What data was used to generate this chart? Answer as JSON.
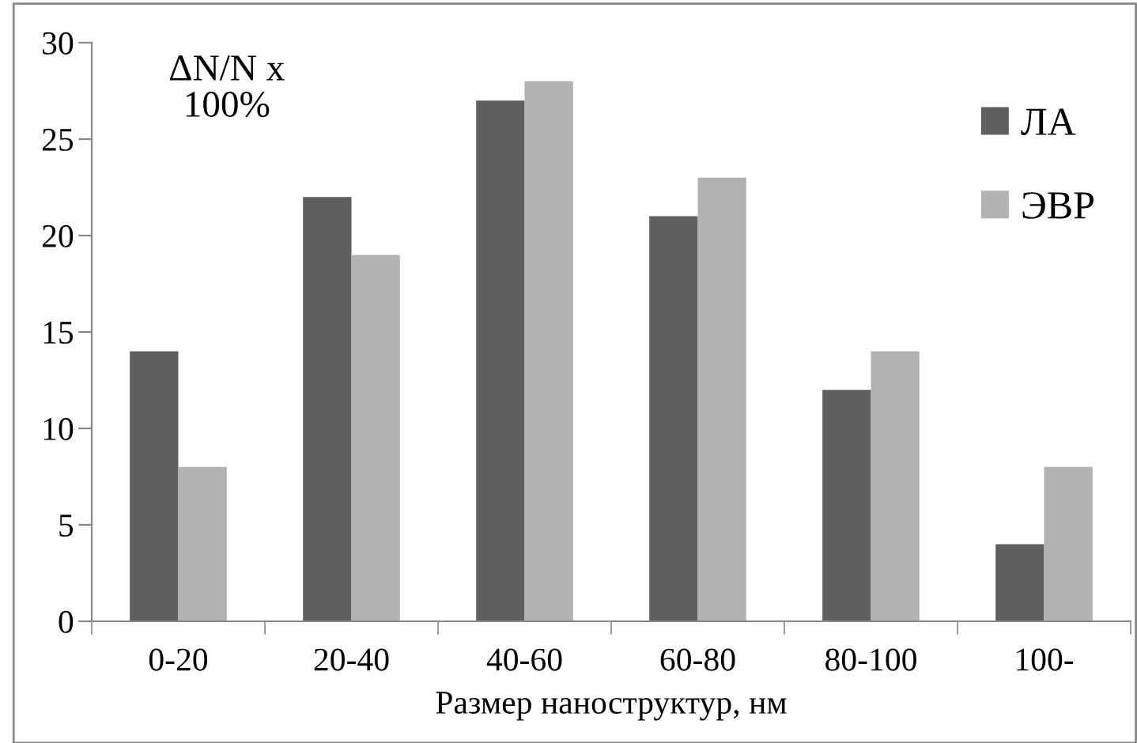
{
  "chart_data": {
    "type": "bar",
    "ylabel": "ΔN/N x\n100%",
    "xlabel": "Размер наноструктур, нм",
    "categories": [
      "0-20",
      "20-40",
      "40-60",
      "60-80",
      "80-100",
      "100-"
    ],
    "series": [
      {
        "name": "ЛА",
        "color": "#5f5f5f",
        "values": [
          14,
          22,
          27,
          21,
          12,
          4
        ]
      },
      {
        "name": "ЭВР",
        "color": "#b2b2b2",
        "values": [
          8,
          19,
          28,
          23,
          14,
          8
        ]
      }
    ],
    "ylim": [
      0,
      30
    ],
    "yticks": [
      0,
      5,
      10,
      15,
      20,
      25,
      30
    ],
    "grid": false,
    "legend": "top right"
  }
}
